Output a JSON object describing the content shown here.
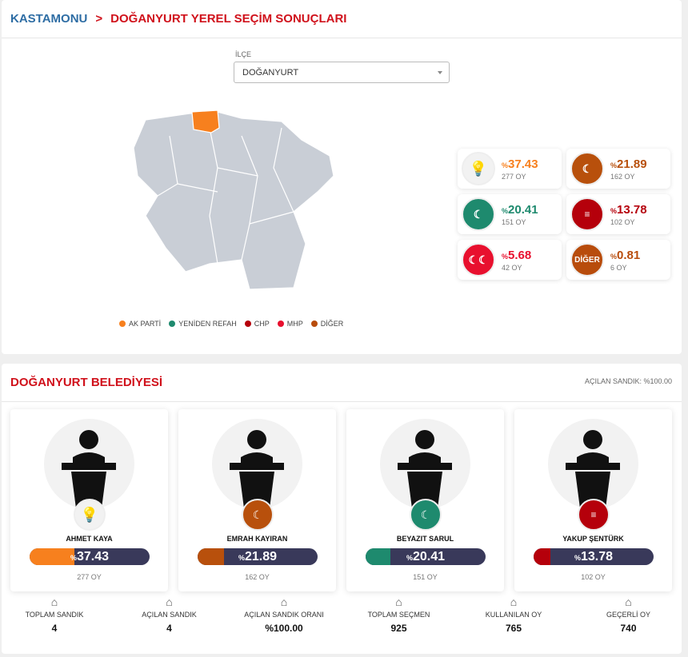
{
  "breadcrumb": {
    "province": "KASTAMONU",
    "page": "DOĞANYURT YEREL SEÇİM SONUÇLARI"
  },
  "filter": {
    "label": "İLÇE",
    "value": "DOĞANYURT"
  },
  "legend": [
    {
      "label": "AK PARTİ",
      "color": "#f7801e"
    },
    {
      "label": "YENİDEN REFAH",
      "color": "#1e8a6e"
    },
    {
      "label": "CHP",
      "color": "#b5000b"
    },
    {
      "label": "MHP",
      "color": "#e8102e"
    },
    {
      "label": "DİĞER",
      "color": "#b84c0c"
    }
  ],
  "parties": [
    {
      "name": "AK PARTİ",
      "pct": "37.43",
      "votes": "277 OY",
      "color": "#f7801e"
    },
    {
      "name": "BBP",
      "pct": "21.89",
      "votes": "162 OY",
      "color": "#b8500c"
    },
    {
      "name": "YENİDEN REFAH",
      "pct": "20.41",
      "votes": "151 OY",
      "color": "#1e8a6e"
    },
    {
      "name": "CHP",
      "pct": "13.78",
      "votes": "102 OY",
      "color": "#b5000b"
    },
    {
      "name": "MHP",
      "pct": "5.68",
      "votes": "42 OY",
      "color": "#e8102e"
    },
    {
      "name": "DİĞER",
      "logo_text": "DİĞER",
      "pct": "0.81",
      "votes": "6 OY",
      "color": "#b84c0c"
    }
  ],
  "pct_sign": "%",
  "municipality": {
    "title": "DOĞANYURT BELEDİYESİ",
    "opened": "AÇILAN SANDIK: %100.00"
  },
  "candidates": [
    {
      "name": "AHMET KAYA",
      "pct": "37.43",
      "votes": "277 OY",
      "color": "#f7801e",
      "fill": 37.43
    },
    {
      "name": "EMRAH KAYIRAN",
      "pct": "21.89",
      "votes": "162 OY",
      "color": "#b8500c",
      "fill": 21.89
    },
    {
      "name": "BEYAZIT SARUL",
      "pct": "20.41",
      "votes": "151 OY",
      "color": "#1e8a6e",
      "fill": 20.41
    },
    {
      "name": "YAKUP ŞENTÜRK",
      "pct": "13.78",
      "votes": "102 OY",
      "color": "#b5000b",
      "fill": 13.78
    }
  ],
  "stats": [
    {
      "label": "TOPLAM SANDIK",
      "value": "4",
      "icon": "ballot-box-icon"
    },
    {
      "label": "AÇILAN SANDIK",
      "value": "4",
      "icon": "ballot-box-icon"
    },
    {
      "label": "AÇILAN SANDIK ORANI",
      "value": "%100.00",
      "icon": "ballot-box-icon"
    },
    {
      "label": "TOPLAM SEÇMEN",
      "value": "925",
      "icon": "people-icon"
    },
    {
      "label": "KULLANILAN OY",
      "value": "765",
      "icon": "vote-hand-icon"
    },
    {
      "label": "GEÇERLİ OY",
      "value": "740",
      "icon": "phone-vote-icon"
    }
  ]
}
